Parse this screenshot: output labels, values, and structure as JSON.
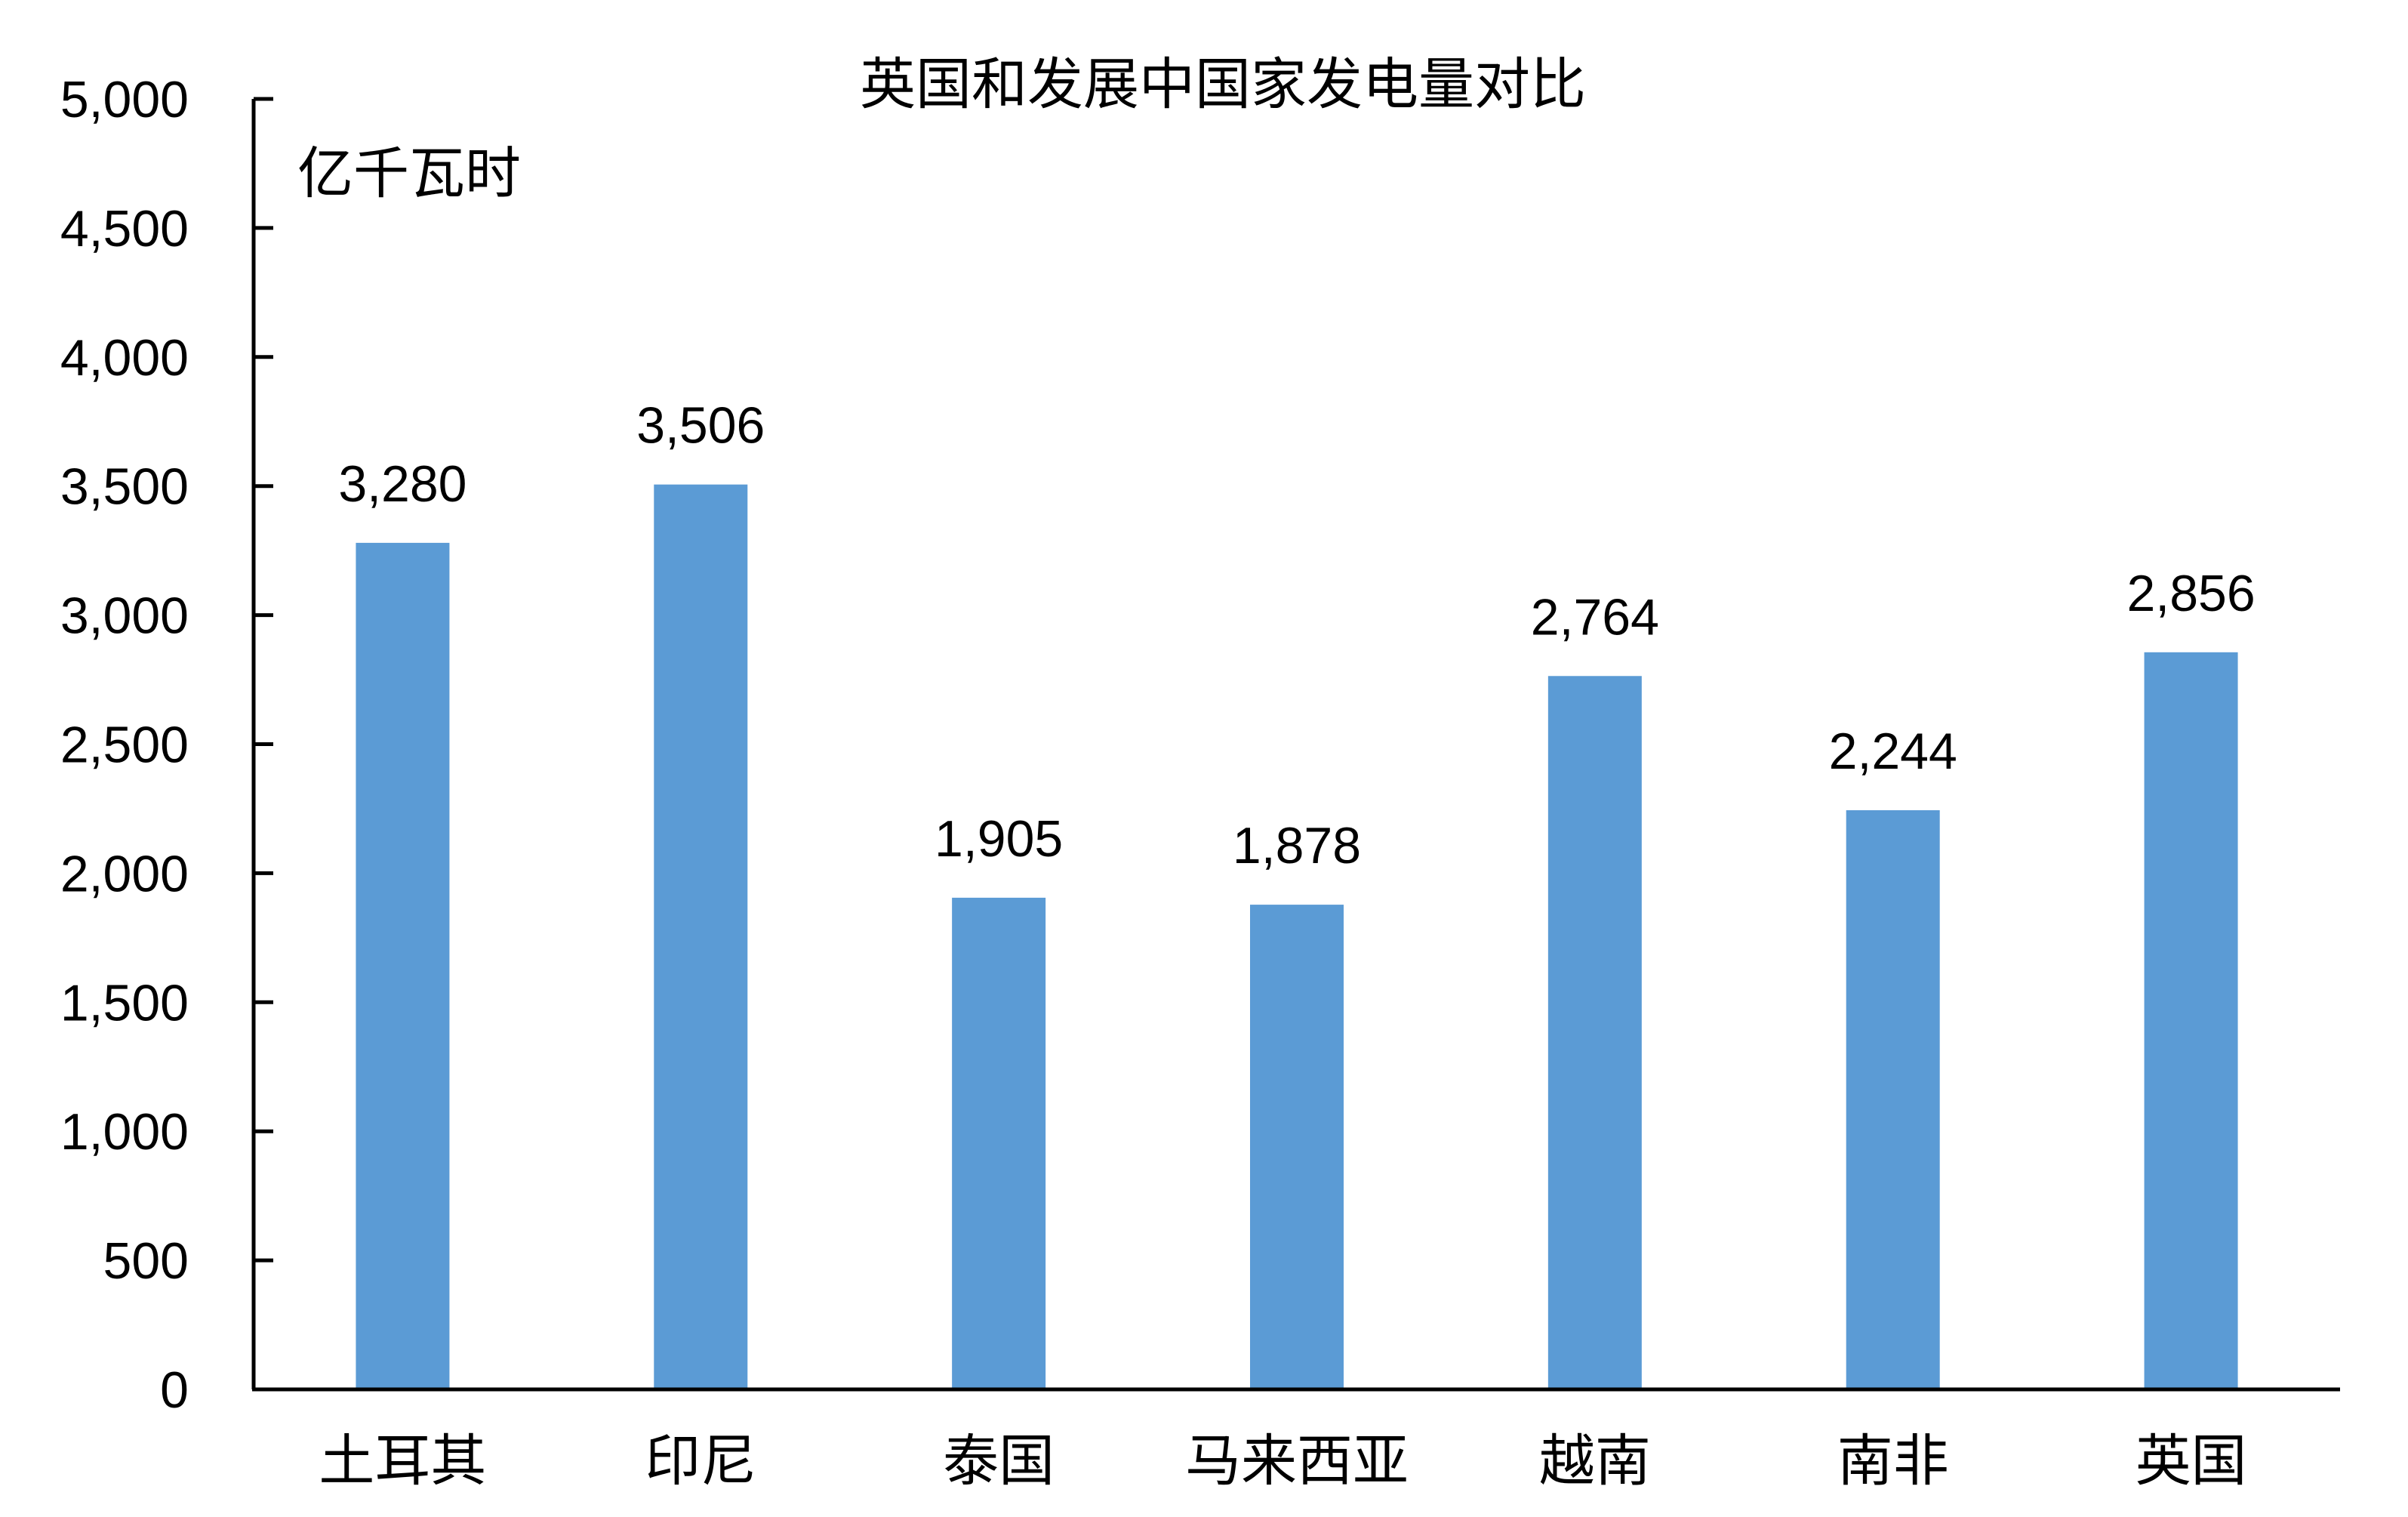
{
  "chart_data": {
    "type": "bar",
    "title": "英国和发展中国家发电量对比",
    "unit_label": "亿千瓦时",
    "categories": [
      "土耳其",
      "印尼",
      "泰国",
      "马来西亚",
      "越南",
      "南非",
      "英国"
    ],
    "values": [
      3280,
      3506,
      1905,
      1878,
      2764,
      2244,
      2856
    ],
    "data_labels": [
      "3,280",
      "3,506",
      "1,905",
      "1,878",
      "2,764",
      "2,244",
      "2,856"
    ],
    "y_ticks": [
      0,
      500,
      1000,
      1500,
      2000,
      2500,
      3000,
      3500,
      4000,
      4500,
      5000
    ],
    "y_tick_labels": [
      "0",
      "500",
      "1,000",
      "1,500",
      "2,000",
      "2,500",
      "3,000",
      "3,500",
      "4,000",
      "4,500",
      "5,000"
    ],
    "ylim": [
      0,
      5000
    ],
    "grid": false,
    "legend": "none",
    "bar_color": "#5B9BD5",
    "axis_color": "#000000"
  }
}
